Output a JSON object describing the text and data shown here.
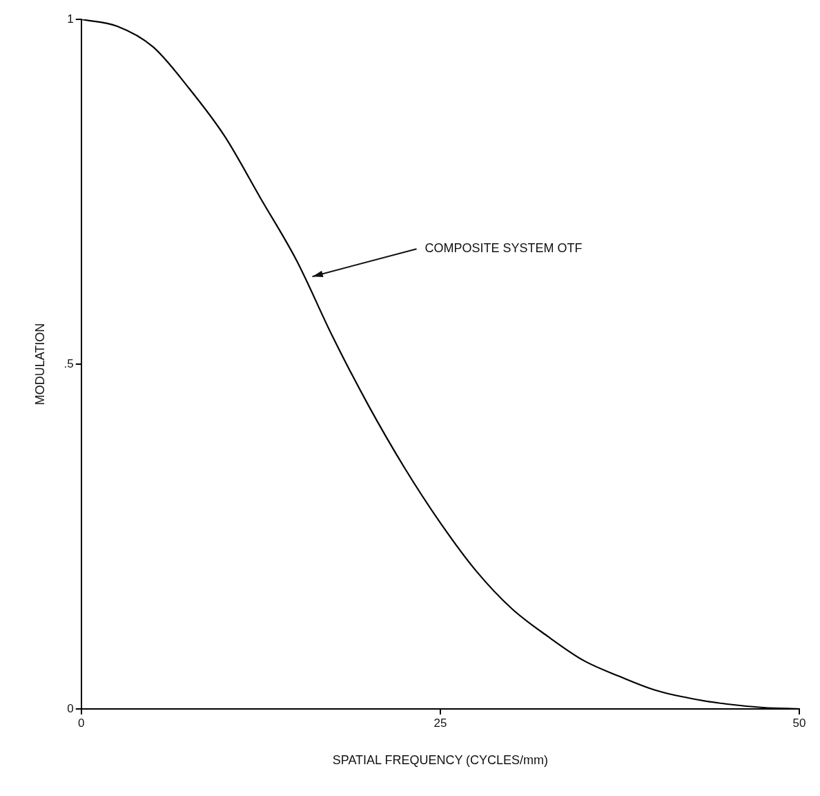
{
  "chart_data": {
    "type": "line",
    "xlabel": "SPATIAL FREQUENCY (CYCLES/mm)",
    "ylabel": "MODULATION",
    "x": [
      0,
      2.5,
      5,
      7.5,
      10,
      12.5,
      15,
      17.5,
      20,
      22.5,
      25,
      27.5,
      30,
      32.5,
      35,
      37.5,
      40,
      42.5,
      45,
      47.5,
      50
    ],
    "series": [
      {
        "color": "#000000",
        "values": [
          1,
          0.99,
          0.96,
          0.9,
          0.83,
          0.74,
          0.65,
          0.54,
          0.44,
          0.35,
          0.27,
          0.2,
          0.145,
          0.105,
          0.07,
          0.047,
          0.027,
          0.015,
          0.007,
          0.002,
          0
        ]
      }
    ],
    "xlim": [
      0,
      50
    ],
    "xticks": [
      0,
      25,
      50
    ],
    "ylim": [
      0,
      1
    ],
    "yticks": [
      0,
      {
        "value": 0.5,
        "label": ".5"
      },
      1
    ],
    "marker": "none",
    "line_style": "solid",
    "legend": false,
    "annotations": [
      {
        "text": "COMPOSITE SYSTEM OTF",
        "x": 15.9,
        "y": 0.625
      }
    ]
  }
}
